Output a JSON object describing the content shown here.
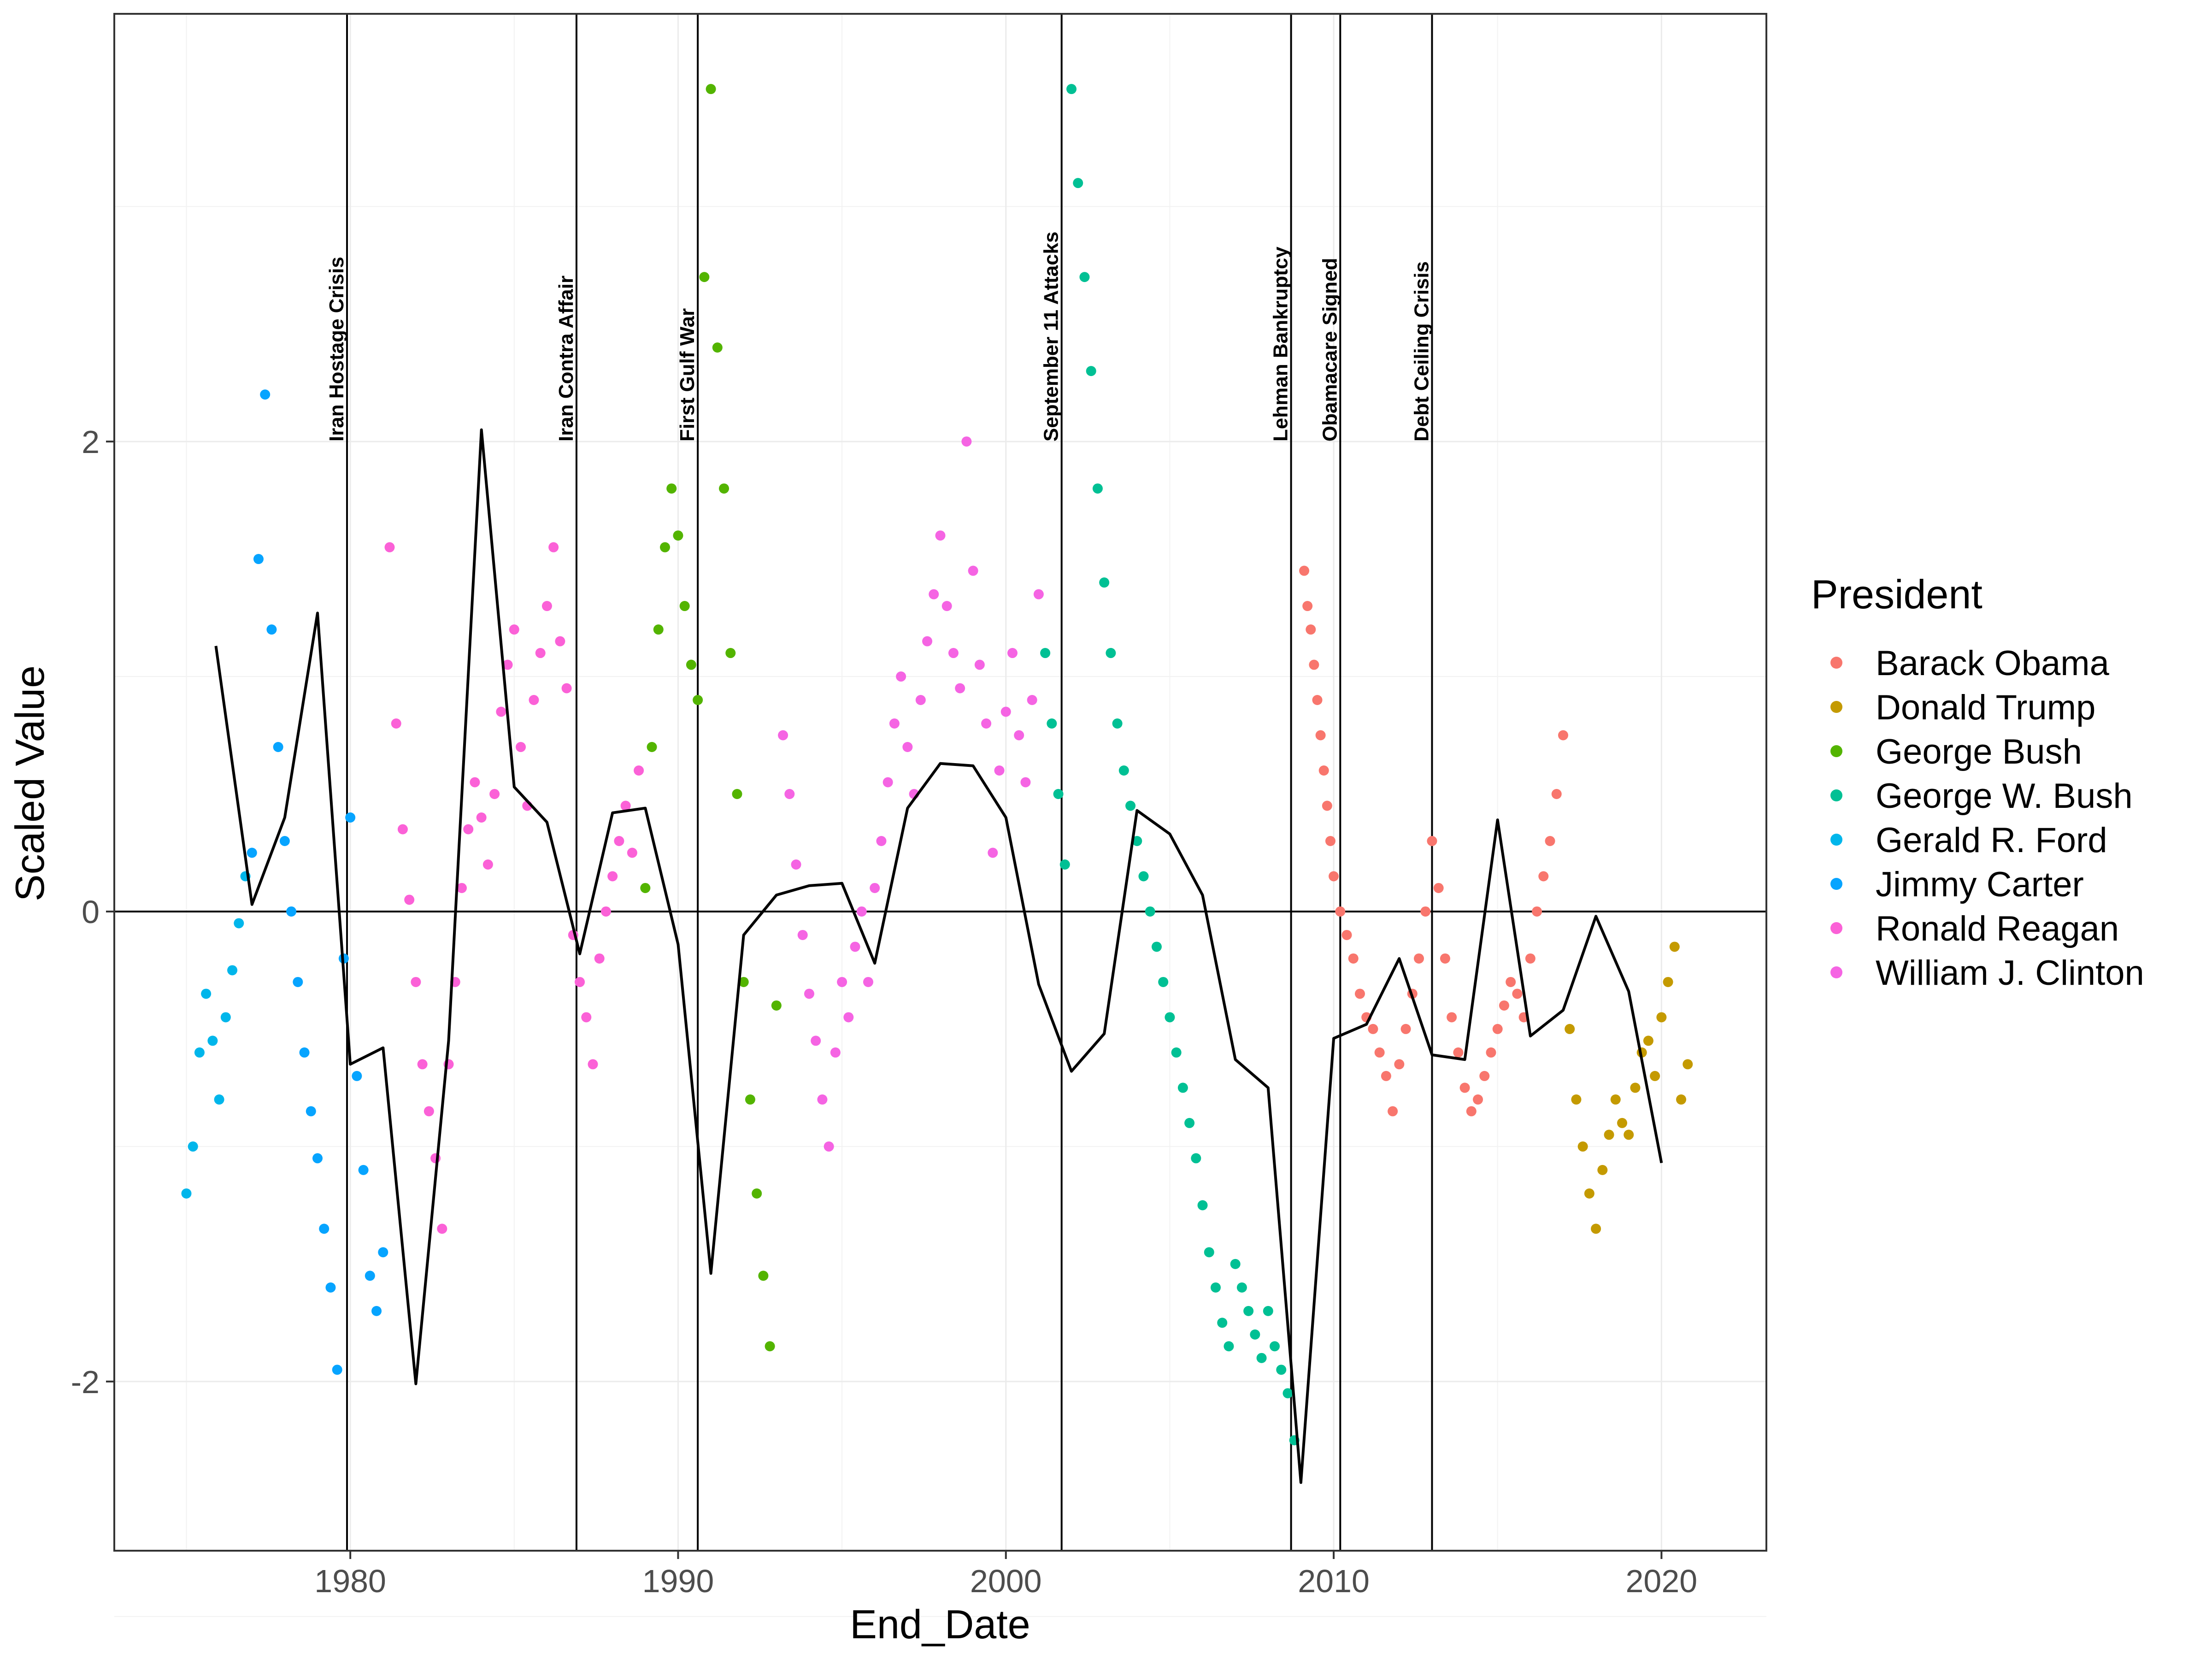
{
  "chart_data": {
    "type": "scatter",
    "xlabel": "End_Date",
    "ylabel": "Scaled Value",
    "xlim": [
      1972.8,
      2023.2
    ],
    "ylim": [
      -2.72,
      3.82
    ],
    "xticks": [
      1980,
      1990,
      2000,
      2010,
      2020
    ],
    "yticks": [
      -2,
      0,
      2
    ],
    "grid": true,
    "legend": {
      "title": "President",
      "position": "right"
    },
    "series": [
      {
        "name": "Barack Obama",
        "color": "#F8766D",
        "points": [
          [
            2009.1,
            1.45
          ],
          [
            2009.2,
            1.3
          ],
          [
            2009.3,
            1.2
          ],
          [
            2009.4,
            1.05
          ],
          [
            2009.5,
            0.9
          ],
          [
            2009.6,
            0.75
          ],
          [
            2009.7,
            0.6
          ],
          [
            2009.8,
            0.45
          ],
          [
            2009.9,
            0.3
          ],
          [
            2010.0,
            0.15
          ],
          [
            2010.2,
            0.0
          ],
          [
            2010.4,
            -0.1
          ],
          [
            2010.6,
            -0.2
          ],
          [
            2010.8,
            -0.35
          ],
          [
            2011.0,
            -0.45
          ],
          [
            2011.2,
            -0.5
          ],
          [
            2011.4,
            -0.6
          ],
          [
            2011.6,
            -0.7
          ],
          [
            2011.8,
            -0.85
          ],
          [
            2012.0,
            -0.65
          ],
          [
            2012.2,
            -0.5
          ],
          [
            2012.4,
            -0.35
          ],
          [
            2012.6,
            -0.2
          ],
          [
            2012.8,
            0.0
          ],
          [
            2013.0,
            0.3
          ],
          [
            2013.2,
            0.1
          ],
          [
            2013.4,
            -0.2
          ],
          [
            2013.6,
            -0.45
          ],
          [
            2013.8,
            -0.6
          ],
          [
            2014.0,
            -0.75
          ],
          [
            2014.2,
            -0.85
          ],
          [
            2014.4,
            -0.8
          ],
          [
            2014.6,
            -0.7
          ],
          [
            2014.8,
            -0.6
          ],
          [
            2015.0,
            -0.5
          ],
          [
            2015.2,
            -0.4
          ],
          [
            2015.4,
            -0.3
          ],
          [
            2015.6,
            -0.35
          ],
          [
            2015.8,
            -0.45
          ],
          [
            2016.0,
            -0.2
          ],
          [
            2016.2,
            0.0
          ],
          [
            2016.4,
            0.15
          ],
          [
            2016.6,
            0.3
          ],
          [
            2016.8,
            0.5
          ],
          [
            2017.0,
            0.75
          ]
        ]
      },
      {
        "name": "Donald Trump",
        "color": "#C49A00",
        "points": [
          [
            2017.2,
            -0.5
          ],
          [
            2017.4,
            -0.8
          ],
          [
            2017.6,
            -1.0
          ],
          [
            2017.8,
            -1.2
          ],
          [
            2018.0,
            -1.35
          ],
          [
            2018.2,
            -1.1
          ],
          [
            2018.4,
            -0.95
          ],
          [
            2018.6,
            -0.8
          ],
          [
            2018.8,
            -0.9
          ],
          [
            2019.0,
            -0.95
          ],
          [
            2019.2,
            -0.75
          ],
          [
            2019.4,
            -0.6
          ],
          [
            2019.6,
            -0.55
          ],
          [
            2019.8,
            -0.7
          ],
          [
            2020.0,
            -0.45
          ],
          [
            2020.2,
            -0.3
          ],
          [
            2020.4,
            -0.15
          ],
          [
            2020.6,
            -0.8
          ],
          [
            2020.8,
            -0.65
          ]
        ]
      },
      {
        "name": "George Bush",
        "color": "#53B400",
        "points": [
          [
            1989.0,
            0.1
          ],
          [
            1989.2,
            0.7
          ],
          [
            1989.4,
            1.2
          ],
          [
            1989.6,
            1.55
          ],
          [
            1989.8,
            1.8
          ],
          [
            1990.0,
            1.6
          ],
          [
            1990.2,
            1.3
          ],
          [
            1990.4,
            1.05
          ],
          [
            1990.6,
            0.9
          ],
          [
            1990.8,
            2.7
          ],
          [
            1991.0,
            3.5
          ],
          [
            1991.2,
            2.4
          ],
          [
            1991.4,
            1.8
          ],
          [
            1991.6,
            1.1
          ],
          [
            1991.8,
            0.5
          ],
          [
            1992.0,
            -0.3
          ],
          [
            1992.2,
            -0.8
          ],
          [
            1992.4,
            -1.2
          ],
          [
            1992.6,
            -1.55
          ],
          [
            1992.8,
            -1.85
          ],
          [
            1993.0,
            -0.4
          ]
        ]
      },
      {
        "name": "George W. Bush",
        "color": "#00C094",
        "points": [
          [
            2001.2,
            1.1
          ],
          [
            2001.4,
            0.8
          ],
          [
            2001.6,
            0.5
          ],
          [
            2001.8,
            0.2
          ],
          [
            2002.0,
            3.5
          ],
          [
            2002.2,
            3.1
          ],
          [
            2002.4,
            2.7
          ],
          [
            2002.6,
            2.3
          ],
          [
            2002.8,
            1.8
          ],
          [
            2003.0,
            1.4
          ],
          [
            2003.2,
            1.1
          ],
          [
            2003.4,
            0.8
          ],
          [
            2003.6,
            0.6
          ],
          [
            2003.8,
            0.45
          ],
          [
            2004.0,
            0.3
          ],
          [
            2004.2,
            0.15
          ],
          [
            2004.4,
            0.0
          ],
          [
            2004.6,
            -0.15
          ],
          [
            2004.8,
            -0.3
          ],
          [
            2005.0,
            -0.45
          ],
          [
            2005.2,
            -0.6
          ],
          [
            2005.4,
            -0.75
          ],
          [
            2005.6,
            -0.9
          ],
          [
            2005.8,
            -1.05
          ],
          [
            2006.0,
            -1.25
          ],
          [
            2006.2,
            -1.45
          ],
          [
            2006.4,
            -1.6
          ],
          [
            2006.6,
            -1.75
          ],
          [
            2006.8,
            -1.85
          ],
          [
            2007.0,
            -1.5
          ],
          [
            2007.2,
            -1.6
          ],
          [
            2007.4,
            -1.7
          ],
          [
            2007.6,
            -1.8
          ],
          [
            2007.8,
            -1.9
          ],
          [
            2008.0,
            -1.7
          ],
          [
            2008.2,
            -1.85
          ],
          [
            2008.4,
            -1.95
          ],
          [
            2008.6,
            -2.05
          ],
          [
            2008.8,
            -2.25
          ]
        ]
      },
      {
        "name": "Gerald R. Ford",
        "color": "#00B6EB",
        "points": [
          [
            1975.0,
            -1.2
          ],
          [
            1975.2,
            -1.0
          ],
          [
            1975.4,
            -0.6
          ],
          [
            1975.6,
            -0.35
          ],
          [
            1975.8,
            -0.55
          ],
          [
            1976.0,
            -0.8
          ],
          [
            1976.2,
            -0.45
          ],
          [
            1976.4,
            -0.25
          ],
          [
            1976.6,
            -0.05
          ],
          [
            1976.8,
            0.15
          ]
        ]
      },
      {
        "name": "Jimmy Carter",
        "color": "#06A4FF",
        "points": [
          [
            1977.0,
            0.25
          ],
          [
            1977.2,
            1.5
          ],
          [
            1977.4,
            2.2
          ],
          [
            1977.6,
            1.2
          ],
          [
            1977.8,
            0.7
          ],
          [
            1978.0,
            0.3
          ],
          [
            1978.2,
            0.0
          ],
          [
            1978.4,
            -0.3
          ],
          [
            1978.6,
            -0.6
          ],
          [
            1978.8,
            -0.85
          ],
          [
            1979.0,
            -1.05
          ],
          [
            1979.2,
            -1.35
          ],
          [
            1979.4,
            -1.6
          ],
          [
            1979.6,
            -1.95
          ],
          [
            1979.8,
            -0.2
          ],
          [
            1980.0,
            0.4
          ],
          [
            1980.2,
            -0.7
          ],
          [
            1980.4,
            -1.1
          ],
          [
            1980.6,
            -1.55
          ],
          [
            1980.8,
            -1.7
          ],
          [
            1981.0,
            -1.45
          ]
        ]
      },
      {
        "name": "Ronald Reagan",
        "color": "#FB61D7",
        "points": [
          [
            1981.2,
            1.55
          ],
          [
            1981.4,
            0.8
          ],
          [
            1981.6,
            0.35
          ],
          [
            1981.8,
            0.05
          ],
          [
            1982.0,
            -0.3
          ],
          [
            1982.2,
            -0.65
          ],
          [
            1982.4,
            -0.85
          ],
          [
            1982.6,
            -1.05
          ],
          [
            1982.8,
            -1.35
          ],
          [
            1983.0,
            -0.65
          ],
          [
            1983.2,
            -0.3
          ],
          [
            1983.4,
            0.1
          ],
          [
            1983.6,
            0.35
          ],
          [
            1983.8,
            0.55
          ],
          [
            1984.0,
            0.4
          ],
          [
            1984.2,
            0.2
          ],
          [
            1984.4,
            0.5
          ],
          [
            1984.6,
            0.85
          ],
          [
            1984.8,
            1.05
          ],
          [
            1985.0,
            1.2
          ],
          [
            1985.2,
            0.7
          ],
          [
            1985.4,
            0.45
          ],
          [
            1985.6,
            0.9
          ],
          [
            1985.8,
            1.1
          ],
          [
            1986.0,
            1.3
          ],
          [
            1986.2,
            1.55
          ],
          [
            1986.4,
            1.15
          ],
          [
            1986.6,
            0.95
          ],
          [
            1986.8,
            -0.1
          ],
          [
            1987.0,
            -0.3
          ],
          [
            1987.2,
            -0.45
          ],
          [
            1987.4,
            -0.65
          ],
          [
            1987.6,
            -0.2
          ],
          [
            1987.8,
            0.0
          ],
          [
            1988.0,
            0.15
          ],
          [
            1988.2,
            0.3
          ],
          [
            1988.4,
            0.45
          ],
          [
            1988.6,
            0.25
          ],
          [
            1988.8,
            0.6
          ]
        ]
      },
      {
        "name": "William J. Clinton",
        "color": "#F564E3",
        "points": [
          [
            1993.2,
            0.75
          ],
          [
            1993.4,
            0.5
          ],
          [
            1993.6,
            0.2
          ],
          [
            1993.8,
            -0.1
          ],
          [
            1994.0,
            -0.35
          ],
          [
            1994.2,
            -0.55
          ],
          [
            1994.4,
            -0.8
          ],
          [
            1994.6,
            -1.0
          ],
          [
            1994.8,
            -0.6
          ],
          [
            1995.0,
            -0.3
          ],
          [
            1995.2,
            -0.45
          ],
          [
            1995.4,
            -0.15
          ],
          [
            1995.6,
            0.0
          ],
          [
            1995.8,
            -0.3
          ],
          [
            1996.0,
            0.1
          ],
          [
            1996.2,
            0.3
          ],
          [
            1996.4,
            0.55
          ],
          [
            1996.6,
            0.8
          ],
          [
            1996.8,
            1.0
          ],
          [
            1997.0,
            0.7
          ],
          [
            1997.2,
            0.5
          ],
          [
            1997.4,
            0.9
          ],
          [
            1997.6,
            1.15
          ],
          [
            1997.8,
            1.35
          ],
          [
            1998.0,
            1.6
          ],
          [
            1998.2,
            1.3
          ],
          [
            1998.4,
            1.1
          ],
          [
            1998.6,
            0.95
          ],
          [
            1998.8,
            2.0
          ],
          [
            1999.0,
            1.45
          ],
          [
            1999.2,
            1.05
          ],
          [
            1999.4,
            0.8
          ],
          [
            1999.6,
            0.25
          ],
          [
            1999.8,
            0.6
          ],
          [
            2000.0,
            0.85
          ],
          [
            2000.2,
            1.1
          ],
          [
            2000.4,
            0.75
          ],
          [
            2000.6,
            0.55
          ],
          [
            2000.8,
            0.9
          ],
          [
            2001.0,
            1.35
          ]
        ]
      }
    ],
    "trend_line": [
      [
        1975.9,
        1.13
      ],
      [
        1977.0,
        0.03
      ],
      [
        1978.0,
        0.4
      ],
      [
        1979.0,
        1.27
      ],
      [
        1980.0,
        -0.65
      ],
      [
        1981.0,
        -0.58
      ],
      [
        1982.0,
        -2.01
      ],
      [
        1983.0,
        -0.55
      ],
      [
        1984.0,
        2.05
      ],
      [
        1985.0,
        0.53
      ],
      [
        1986.0,
        0.38
      ],
      [
        1987.0,
        -0.18
      ],
      [
        1988.0,
        0.42
      ],
      [
        1989.0,
        0.44
      ],
      [
        1990.0,
        -0.14
      ],
      [
        1991.0,
        -1.54
      ],
      [
        1992.0,
        -0.1
      ],
      [
        1993.0,
        0.07
      ],
      [
        1994.0,
        0.11
      ],
      [
        1995.0,
        0.12
      ],
      [
        1996.0,
        -0.22
      ],
      [
        1997.0,
        0.44
      ],
      [
        1998.0,
        0.63
      ],
      [
        1999.0,
        0.62
      ],
      [
        2000.0,
        0.4
      ],
      [
        2001.0,
        -0.31
      ],
      [
        2002.0,
        -0.68
      ],
      [
        2003.0,
        -0.52
      ],
      [
        2004.0,
        0.43
      ],
      [
        2005.0,
        0.33
      ],
      [
        2006.0,
        0.07
      ],
      [
        2007.0,
        -0.63
      ],
      [
        2008.0,
        -0.75
      ],
      [
        2009.0,
        -2.43
      ],
      [
        2010.0,
        -0.54
      ],
      [
        2011.0,
        -0.48
      ],
      [
        2012.0,
        -0.2
      ],
      [
        2013.0,
        -0.61
      ],
      [
        2014.0,
        -0.63
      ],
      [
        2015.0,
        0.39
      ],
      [
        2016.0,
        -0.53
      ],
      [
        2017.0,
        -0.42
      ],
      [
        2018.0,
        -0.02
      ],
      [
        2019.0,
        -0.34
      ],
      [
        2020.0,
        -1.07
      ]
    ],
    "events": [
      {
        "label": "Iran Hostage Crisis",
        "x": 1979.9
      },
      {
        "label": "Iran Contra Affair",
        "x": 1986.9
      },
      {
        "label": "First Gulf War",
        "x": 1990.6
      },
      {
        "label": "September 11 Attacks",
        "x": 2001.7
      },
      {
        "label": "Lehman Bankruptcy",
        "x": 2008.7
      },
      {
        "label": "Obamacare Signed",
        "x": 2010.2
      },
      {
        "label": "Debt Ceiling Crisis",
        "x": 2013.0
      }
    ]
  }
}
